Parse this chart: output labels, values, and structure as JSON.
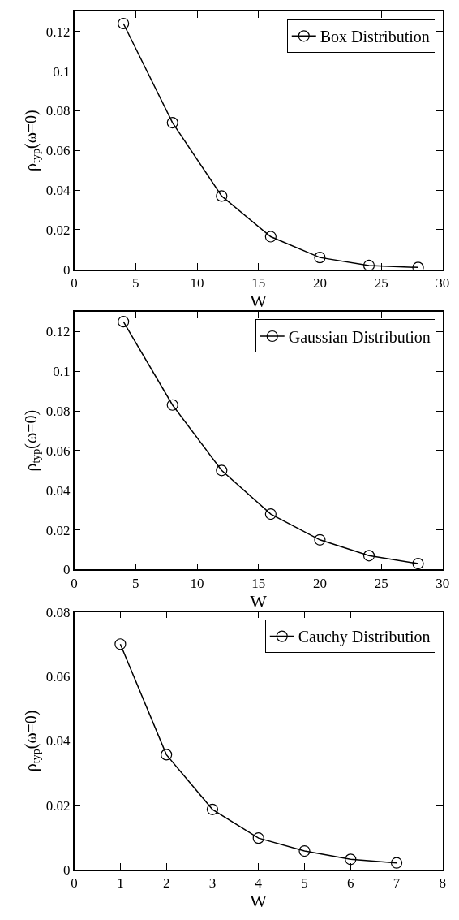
{
  "chart_data": [
    {
      "type": "line",
      "xlabel": "W",
      "ylabel": "ρ$_{typ}$(ω=0)",
      "x": [
        4,
        8,
        12,
        16,
        20,
        24,
        28
      ],
      "series": [
        {
          "name": "Box Distribution",
          "color": "#000000",
          "values": [
            0.124,
            0.074,
            0.037,
            0.0165,
            0.006,
            0.002,
            0.001
          ]
        }
      ],
      "xlim": [
        0,
        30
      ],
      "xticks": [
        0,
        5,
        10,
        15,
        20,
        25,
        30
      ],
      "ylim": [
        0,
        0.13
      ],
      "yticks": [
        0,
        0.02,
        0.04,
        0.06,
        0.08,
        0.1,
        0.12
      ],
      "marker": "circle",
      "line_style": "solid",
      "legend": "top right"
    },
    {
      "type": "line",
      "xlabel": "W",
      "ylabel": "ρ$_{typ}$(ω=0)",
      "x": [
        4,
        8,
        12,
        16,
        20,
        24,
        28
      ],
      "series": [
        {
          "name": "Gaussian Distribution",
          "color": "#000000",
          "values": [
            0.125,
            0.083,
            0.05,
            0.028,
            0.015,
            0.007,
            0.003
          ]
        }
      ],
      "xlim": [
        0,
        30
      ],
      "xticks": [
        0,
        5,
        10,
        15,
        20,
        25,
        30
      ],
      "ylim": [
        0,
        0.13
      ],
      "yticks": [
        0,
        0.02,
        0.04,
        0.06,
        0.08,
        0.1,
        0.12
      ],
      "marker": "circle",
      "line_style": "solid",
      "legend": "top right"
    },
    {
      "type": "line",
      "xlabel": "W",
      "ylabel": "ρ$_{typ}$(ω=0)",
      "x": [
        1,
        2,
        3,
        4,
        5,
        6,
        7
      ],
      "series": [
        {
          "name": "Cauchy Distribution",
          "color": "#000000",
          "values": [
            0.07,
            0.0357,
            0.0187,
            0.0098,
            0.0058,
            0.0032,
            0.0021
          ]
        }
      ],
      "xlim": [
        0,
        8
      ],
      "xticks": [
        0,
        1,
        2,
        3,
        4,
        5,
        6,
        7,
        8
      ],
      "ylim": [
        0,
        0.08
      ],
      "yticks": [
        0,
        0.02,
        0.04,
        0.06,
        0.08
      ],
      "marker": "circle",
      "line_style": "solid",
      "legend": "top right"
    }
  ]
}
